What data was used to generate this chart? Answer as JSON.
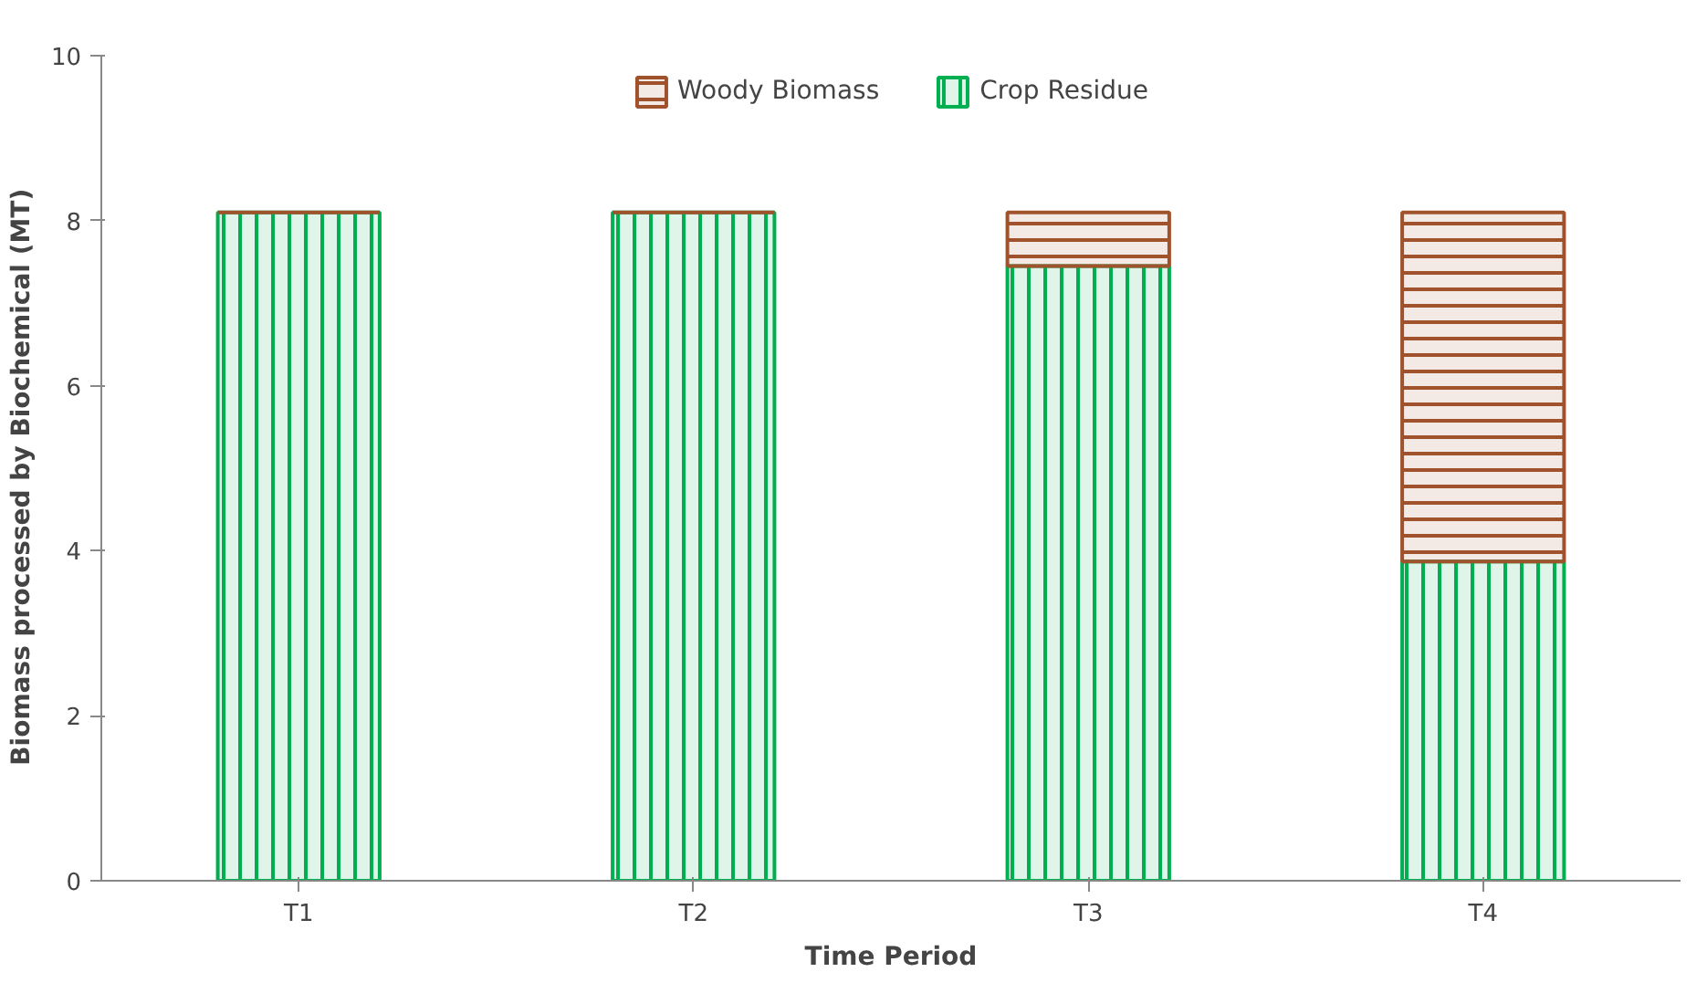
{
  "chart_data": {
    "type": "bar",
    "stacked": true,
    "xlabel": "Time Period",
    "ylabel": "Biomass  processed by Biochemical  (MT)",
    "categories": [
      "T1",
      "T2",
      "T3",
      "T4"
    ],
    "series": [
      {
        "name": "Crop Residue",
        "color": "#00b050",
        "values": [
          8.1,
          8.1,
          7.45,
          3.87
        ]
      },
      {
        "name": "Woody Biomass",
        "color": "#a0522d",
        "values": [
          0,
          0,
          0.65,
          4.23
        ]
      }
    ],
    "ylim": [
      0,
      10
    ],
    "yticks": [
      0,
      2,
      4,
      6,
      8,
      10
    ],
    "grid": false,
    "legend": "top"
  }
}
